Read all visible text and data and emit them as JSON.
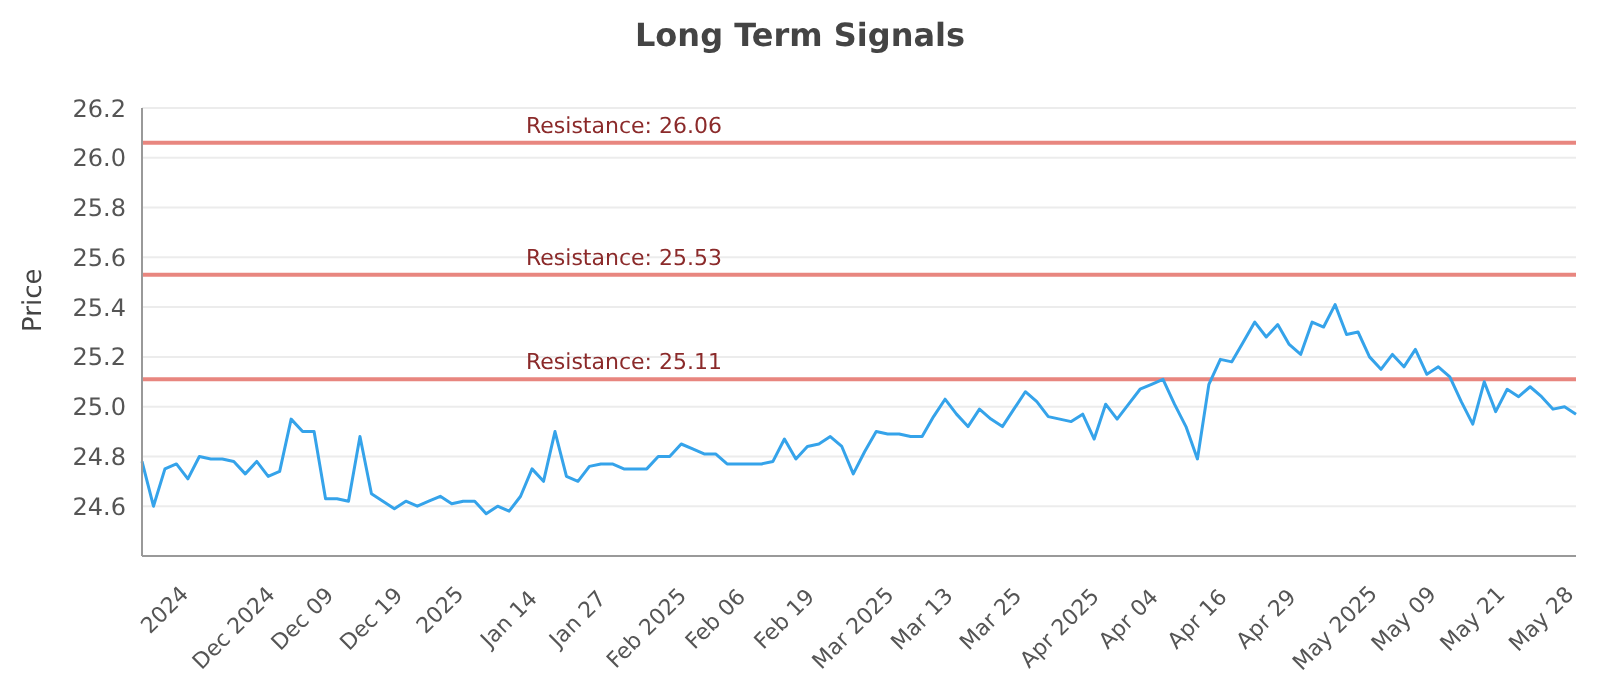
{
  "chart_data": {
    "type": "line",
    "title": "Long Term Signals",
    "ylabel": "Price",
    "categories": [
      null,
      null,
      "2024",
      null,
      null,
      null,
      null,
      null,
      "Dec 2024",
      null,
      null,
      null,
      null,
      null,
      "Dec 09",
      null,
      null,
      null,
      null,
      null,
      "Dec 19",
      null,
      null,
      null,
      null,
      null,
      "2025",
      null,
      null,
      null,
      null,
      null,
      "Jan 14",
      null,
      null,
      null,
      null,
      null,
      "Jan 27",
      null,
      null,
      null,
      null,
      null,
      "Feb 2025",
      null,
      null,
      null,
      null,
      null,
      "Feb 06",
      null,
      null,
      null,
      null,
      null,
      "Feb 19",
      null,
      null,
      null,
      null,
      null,
      "Mar 2025",
      null,
      null,
      null,
      null,
      null,
      "Mar 13",
      null,
      null,
      null,
      null,
      null,
      "Mar 25",
      null,
      null,
      null,
      null,
      null,
      "Apr 2025",
      null,
      null,
      null,
      null,
      null,
      "Apr 04",
      null,
      null,
      null,
      null,
      null,
      "Apr 16",
      null,
      null,
      null,
      null,
      null,
      "Apr 29",
      null,
      null,
      null,
      null,
      null,
      "May 2025",
      null,
      null,
      null,
      null,
      null,
      "May 09",
      null,
      null,
      null,
      null,
      null,
      "May 21",
      null,
      null,
      null,
      null,
      null,
      "May 28",
      null,
      null,
      null
    ],
    "series": [
      {
        "color": "#35a3ea",
        "values": [
          24.78,
          24.6,
          24.75,
          24.77,
          24.71,
          24.8,
          24.79,
          24.79,
          24.78,
          24.73,
          24.78,
          24.72,
          24.74,
          24.95,
          24.9,
          24.9,
          24.63,
          24.63,
          24.62,
          24.88,
          24.65,
          24.62,
          24.59,
          24.62,
          24.6,
          24.62,
          24.64,
          24.61,
          24.62,
          24.62,
          24.57,
          24.6,
          24.58,
          24.64,
          24.75,
          24.7,
          24.9,
          24.72,
          24.7,
          24.76,
          24.77,
          24.77,
          24.75,
          24.75,
          24.75,
          24.8,
          24.8,
          24.85,
          24.83,
          24.81,
          24.81,
          24.77,
          24.77,
          24.77,
          24.77,
          24.78,
          24.87,
          24.79,
          24.84,
          24.85,
          24.88,
          24.84,
          24.73,
          24.82,
          24.9,
          24.89,
          24.89,
          24.88,
          24.88,
          24.96,
          25.03,
          24.97,
          24.92,
          24.99,
          24.95,
          24.92,
          24.99,
          25.06,
          25.02,
          24.96,
          24.95,
          24.94,
          24.97,
          24.87,
          25.01,
          24.95,
          25.01,
          25.07,
          25.09,
          25.11,
          25.01,
          24.92,
          24.79,
          25.09,
          25.19,
          25.18,
          25.26,
          25.34,
          25.28,
          25.33,
          25.25,
          25.21,
          25.34,
          25.32,
          25.41,
          25.29,
          25.3,
          25.2,
          25.15,
          25.21,
          25.16,
          25.23,
          25.13,
          25.16,
          25.12,
          25.02,
          24.93,
          25.1,
          24.98,
          25.07,
          25.04,
          25.08,
          25.04,
          24.99,
          25.0,
          24.97
        ]
      }
    ],
    "ylim": [
      24.4,
      26.2
    ],
    "yticks": [
      24.6,
      24.8,
      {
        "value": 25,
        "label": "25.0"
      },
      25.2,
      25.4,
      25.6,
      25.8,
      {
        "value": 26,
        "label": "26.0"
      },
      26.2
    ],
    "ref_lines": [
      {
        "axis": "y",
        "value": 26.06,
        "label": "Resistance: 26.06",
        "color": "#e8867f"
      },
      {
        "axis": "y",
        "value": 25.53,
        "label": "Resistance: 25.53",
        "color": "#e8867f"
      },
      {
        "axis": "y",
        "value": 25.11,
        "label": "Resistance: 25.11",
        "color": "#e8867f"
      }
    ],
    "grid": "y",
    "legend": false,
    "marker": "none",
    "line_style": "solid"
  }
}
